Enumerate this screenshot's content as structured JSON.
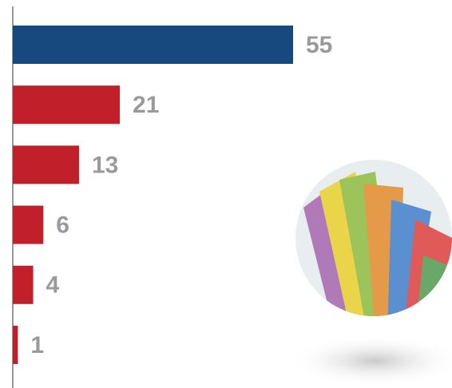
{
  "chart_data": {
    "type": "bar",
    "orientation": "horizontal",
    "values": [
      55,
      21,
      13,
      6,
      4,
      1
    ],
    "colors": [
      "#17497e",
      "#c1202a",
      "#c1202a",
      "#c1202a",
      "#c1202a",
      "#c1202a"
    ]
  }
}
